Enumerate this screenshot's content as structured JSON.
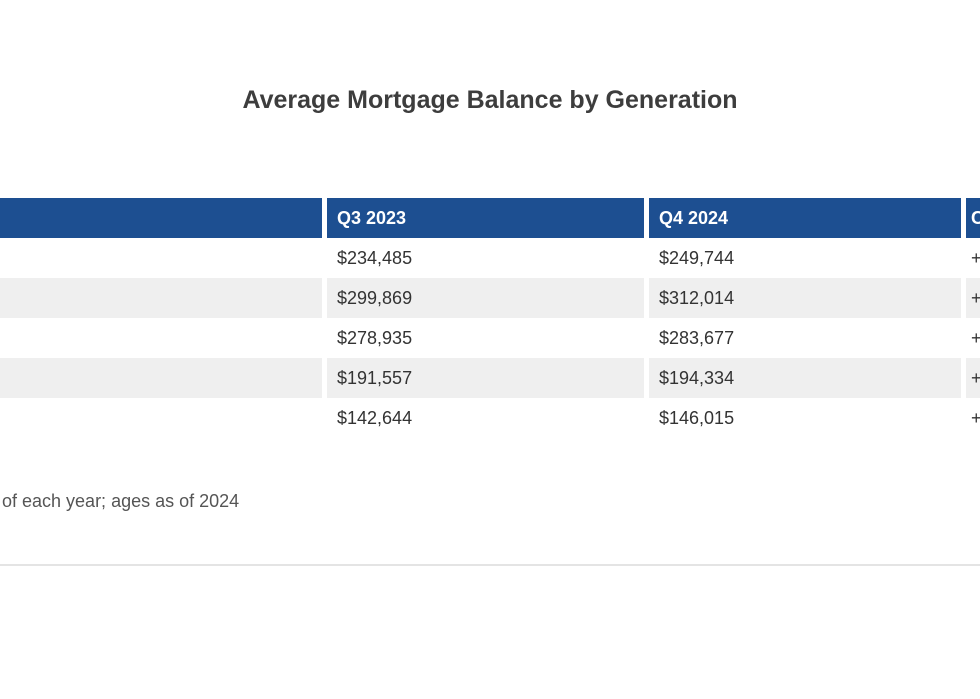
{
  "page": {
    "title": "Average Mortgage Balance by Generation",
    "footnote": "of each year; ages as of 2024"
  },
  "chart_data": {
    "type": "table",
    "title": "Average Mortgage Balance by Generation",
    "columns": [
      "",
      "Q3 2023",
      "Q4 2024",
      "Change"
    ],
    "rows": [
      [
        "",
        "$234,485",
        "$249,744",
        "+"
      ],
      [
        "",
        "$299,869",
        "$312,014",
        "+"
      ],
      [
        "",
        "$278,935",
        "$283,677",
        "+"
      ],
      [
        "",
        "$191,557",
        "$194,334",
        "+"
      ],
      [
        "",
        "$142,644",
        "$146,015",
        "+"
      ]
    ],
    "footnote": "of each year; ages as of 2024",
    "layout": {
      "header_position": "top",
      "zebra_striping": true,
      "cropped": "left generation-label column and right Change column are cut off by the image edges"
    }
  },
  "colors": {
    "header_blue": "#1d4f91",
    "header_text": "#ffffff",
    "row_alt_gray": "#efefef",
    "cell_text": "#333333",
    "title_gray": "#3d3d3d",
    "footnote_gray": "#555555",
    "divider_gray": "#e4e4e4"
  }
}
